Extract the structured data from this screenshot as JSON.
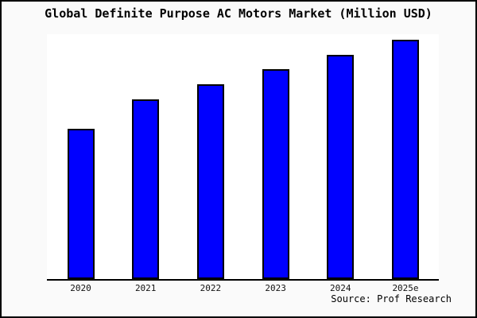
{
  "chart_data": {
    "type": "bar",
    "title": "Global Definite Purpose AC Motors Market (Million USD)",
    "categories": [
      "2020",
      "2021",
      "2022",
      "2023",
      "2024",
      "2025e"
    ],
    "values": [
      62.8,
      75.1,
      81.4,
      87.7,
      93.7,
      100
    ],
    "value_scale": "relative index (y-axis is unlabeled in the chart; 2025e = 100)",
    "xlabel": "",
    "ylabel": "",
    "grid": false,
    "legend": "none",
    "bar_color": "#0000ff",
    "bar_border_color": "#000000"
  },
  "source": "Source: Prof Research",
  "colors": {
    "page_background": "#fafafa",
    "plot_background": "#ffffff",
    "frame_border": "#000000",
    "text": "#000000"
  }
}
